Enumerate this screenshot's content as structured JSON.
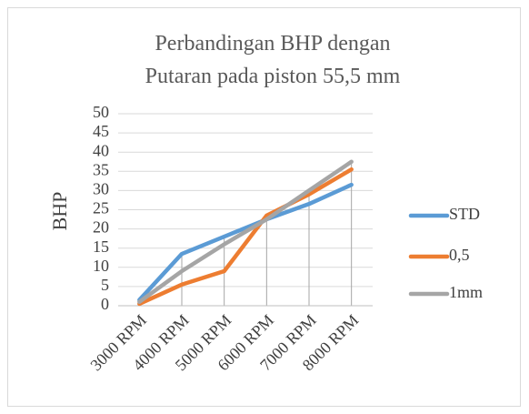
{
  "chart_data": {
    "type": "line",
    "title": "Perbandingan BHP dengan Putaran pada piston 55,5 mm",
    "y_label": "BHP",
    "categories": [
      "3000 RPM",
      "4000 RPM",
      "5000 RPM",
      "6000 RPM",
      "7000 RPM",
      "8000 RPM"
    ],
    "series": [
      {
        "name": "STD",
        "color": "#5b9bd5",
        "values": [
          1.5,
          13.5,
          18,
          22.5,
          26.5,
          31.5
        ]
      },
      {
        "name": "0,5",
        "color": "#ed7d31",
        "values": [
          0.5,
          5.5,
          9,
          23.5,
          29,
          35.5
        ]
      },
      {
        "name": "1mm",
        "color": "#a5a5a5",
        "values": [
          1,
          9,
          16,
          22.5,
          30,
          37.5
        ]
      }
    ],
    "ylim": [
      0,
      50
    ],
    "yticks": [
      0,
      5,
      10,
      15,
      20,
      25,
      30,
      35,
      40,
      45,
      50
    ],
    "grid": true,
    "legend": "right"
  }
}
